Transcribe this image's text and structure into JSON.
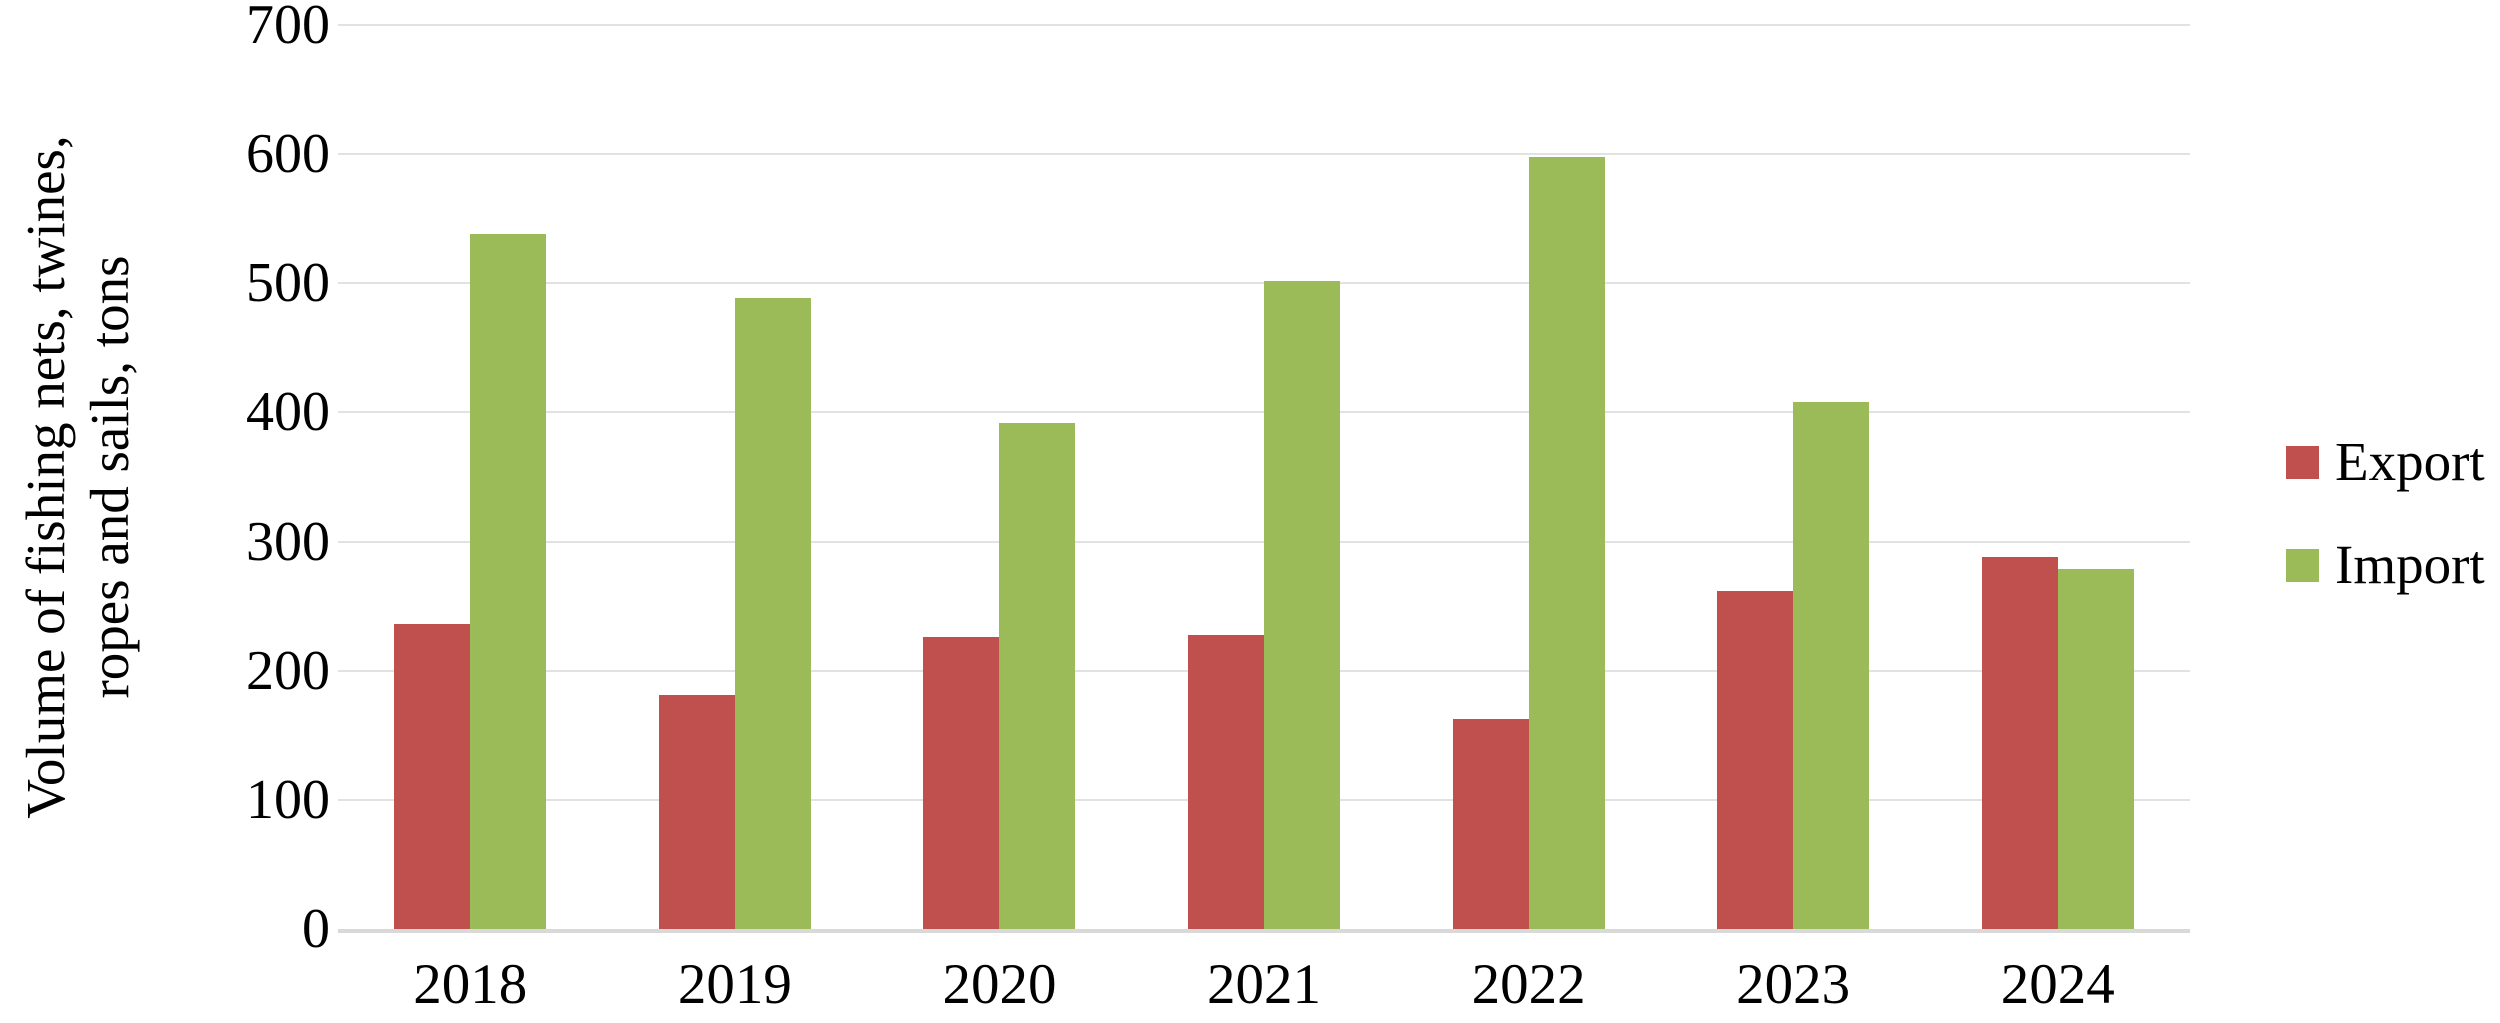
{
  "chart_data": {
    "type": "bar",
    "title": "",
    "categories": [
      "2018",
      "2019",
      "2020",
      "2021",
      "2022",
      "2023",
      "2024"
    ],
    "series": [
      {
        "name": "Export",
        "color": "#C0504D",
        "values": [
          236,
          181,
          226,
          228,
          163,
          262,
          288
        ]
      },
      {
        "name": "Import",
        "color": "#9BBB59",
        "values": [
          538,
          489,
          392,
          502,
          598,
          408,
          279
        ]
      }
    ],
    "xlabel": "",
    "ylabel": "Volume of fishing nets, twines, ropes and sails, tons",
    "ylabel_lines": [
      "Volume of fishing nets, twines,",
      "ropes and sails, tons"
    ],
    "ylim": [
      0,
      700
    ],
    "ytick_step": 100,
    "yticks": [
      0,
      100,
      200,
      300,
      400,
      500,
      600,
      700
    ],
    "grid": "horizontal",
    "gridline_color": "#E2E2E2",
    "axis_line_color": "#D9D9D9",
    "text_color": "#000000",
    "legend_position": "right",
    "legend_labels": [
      "Export",
      "Import"
    ]
  }
}
